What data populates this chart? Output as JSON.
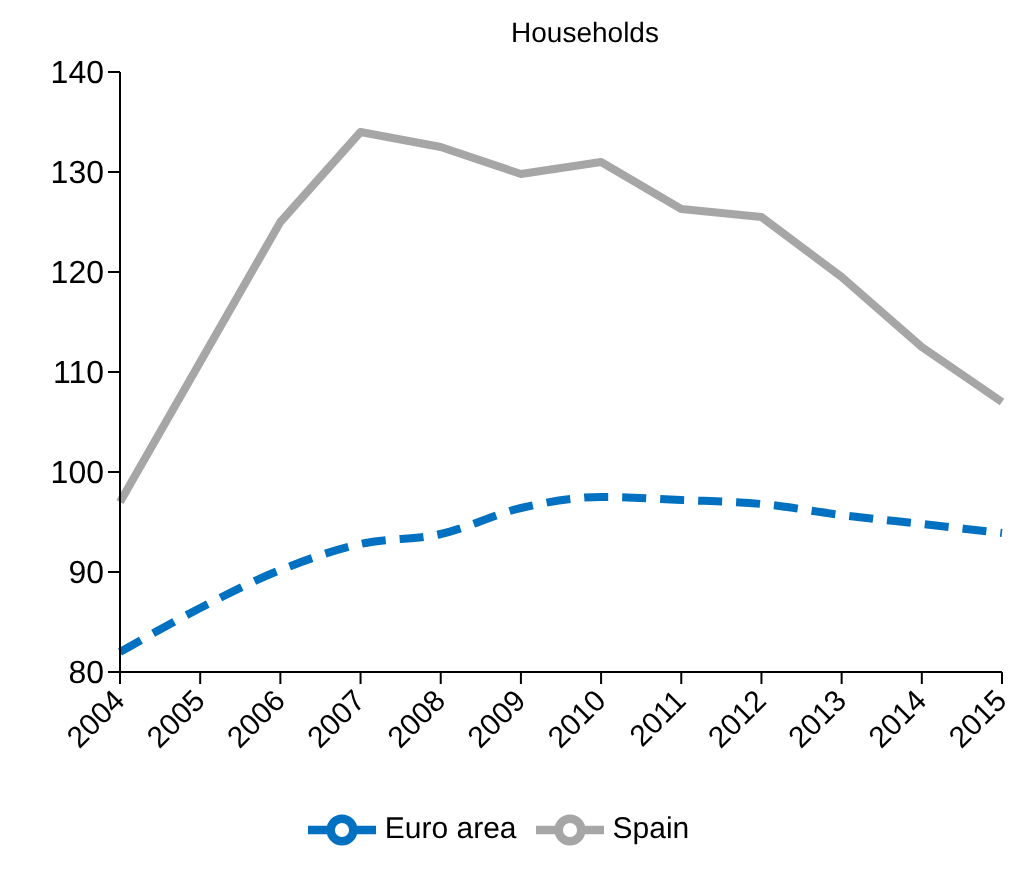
{
  "chart_data": {
    "type": "line",
    "title": "Households",
    "categories": [
      "2004",
      "2005",
      "2006",
      "2007",
      "2008",
      "2009",
      "2010",
      "2011",
      "2012",
      "2013",
      "2014",
      "2015"
    ],
    "series": [
      {
        "name": "Spain",
        "color": "#a6a6a6",
        "line_style": "solid",
        "values": [
          97,
          111,
          125,
          134,
          132.5,
          129.8,
          131,
          126.3,
          125.5,
          119.5,
          112.5,
          107
        ]
      },
      {
        "name": "Euro area",
        "color": "#0070c0",
        "line_style": "dashed",
        "values": [
          82,
          86.4,
          90.2,
          92.8,
          93.8,
          96.4,
          97.5,
          97.2,
          96.8,
          95.7,
          94.8,
          93.9
        ]
      }
    ],
    "ylim": [
      80,
      140
    ],
    "yticks": [
      80,
      90,
      100,
      110,
      120,
      130,
      140
    ],
    "grid": false,
    "legend": "bottom",
    "marker": "none"
  }
}
